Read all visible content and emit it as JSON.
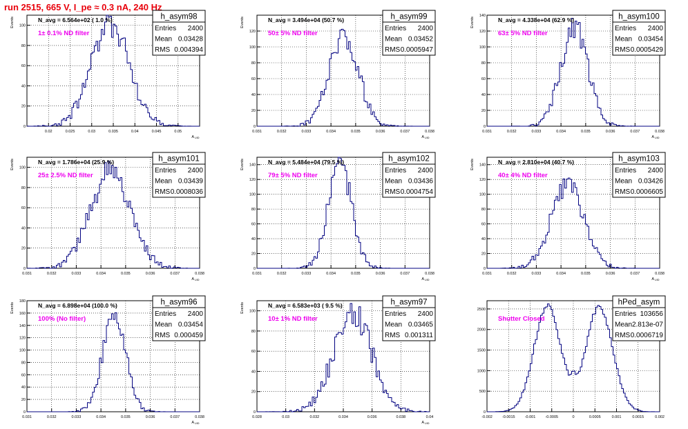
{
  "page_title": "run 2515,   665 V, I_pe ≈ 0.3 nA, 240 Hz",
  "chart_data": [
    {
      "type": "histogram",
      "name": "h_asym98",
      "ylabel": "Events",
      "xlabel": "A_{UID}",
      "xlim": [
        0.015,
        0.055
      ],
      "ylim": [
        0,
        110
      ],
      "xticks": [
        0.02,
        0.025,
        0.03,
        0.035,
        0.04,
        0.045,
        0.05
      ],
      "xtick_labels": [
        "0.02",
        "0.025",
        "0.03",
        "0.035",
        "0.04",
        "0.045",
        "0.05"
      ],
      "yticks": [
        0,
        20,
        40,
        60,
        80,
        100
      ],
      "navg_label": "N_avg = 6.564e+02 ( 1.0 %)",
      "filter_label": "1± 0.1% ND filter",
      "stats": [
        [
          "Entries",
          "2400"
        ],
        [
          "Mean",
          "0.03428"
        ],
        [
          "RMS",
          "0.004394"
        ]
      ],
      "shape": {
        "kind": "gaussian",
        "mu": 0.03428,
        "sigma": 0.004394,
        "peak": 102,
        "nbins": 100,
        "seed": 98
      }
    },
    {
      "type": "histogram",
      "name": "h_asym99",
      "ylabel": "Events",
      "xlabel": "A_{UID}",
      "xlim": [
        0.031,
        0.038
      ],
      "ylim": [
        0,
        140
      ],
      "xticks": [
        0.031,
        0.032,
        0.033,
        0.034,
        0.035,
        0.036,
        0.037,
        0.038
      ],
      "xtick_labels": [
        "0.031",
        "0.032",
        "0.033",
        "0.034",
        "0.035",
        "0.036",
        "0.037",
        "0.038"
      ],
      "yticks": [
        0,
        20,
        40,
        60,
        80,
        100,
        120
      ],
      "navg_label": "N_avg = 3.494e+04 (50.7 %)",
      "filter_label": "50± 5% ND filter",
      "stats": [
        [
          "Entries",
          "2400"
        ],
        [
          "Mean",
          "0.03452"
        ],
        [
          "RMS",
          "0.0005947"
        ]
      ],
      "shape": {
        "kind": "gaussian",
        "mu": 0.03452,
        "sigma": 0.0005947,
        "peak": 112,
        "nbins": 100,
        "seed": 99
      }
    },
    {
      "type": "histogram",
      "name": "h_asym100",
      "ylabel": "Events",
      "xlabel": "A_{UID}",
      "xlim": [
        0.031,
        0.038
      ],
      "ylim": [
        0,
        140
      ],
      "xticks": [
        0.031,
        0.032,
        0.033,
        0.034,
        0.035,
        0.036,
        0.037,
        0.038
      ],
      "xtick_labels": [
        "0.031",
        "0.032",
        "0.033",
        "0.034",
        "0.035",
        "0.036",
        "0.037",
        "0.038"
      ],
      "yticks": [
        0,
        20,
        40,
        60,
        80,
        100,
        120,
        140
      ],
      "navg_label": "N_avg = 4.338e+04 (62.9 %)",
      "filter_label": "63± 5% ND filter",
      "stats": [
        [
          "Entries",
          "2400"
        ],
        [
          "Mean",
          "0.03454"
        ],
        [
          "RMS",
          "0.0005429"
        ]
      ],
      "shape": {
        "kind": "gaussian",
        "mu": 0.03454,
        "sigma": 0.0005429,
        "peak": 126,
        "nbins": 100,
        "seed": 100
      }
    },
    {
      "type": "histogram",
      "name": "h_asym101",
      "ylabel": "Events",
      "xlabel": "A_{UID}",
      "xlim": [
        0.031,
        0.038
      ],
      "ylim": [
        0,
        110
      ],
      "xticks": [
        0.031,
        0.032,
        0.033,
        0.034,
        0.035,
        0.036,
        0.037,
        0.038
      ],
      "xtick_labels": [
        "0.031",
        "0.032",
        "0.033",
        "0.034",
        "0.035",
        "0.036",
        "0.037",
        "0.038"
      ],
      "yticks": [
        0,
        20,
        40,
        60,
        80,
        100
      ],
      "navg_label": "N_avg = 1.786e+04 (25.9 %)",
      "filter_label": "25± 2.5% ND filter",
      "stats": [
        [
          "Entries",
          "2400"
        ],
        [
          "Mean",
          "0.03439"
        ],
        [
          "RMS",
          "0.0008036"
        ]
      ],
      "shape": {
        "kind": "gaussian",
        "mu": 0.03439,
        "sigma": 0.0008036,
        "peak": 97,
        "nbins": 100,
        "seed": 101
      }
    },
    {
      "type": "histogram",
      "name": "h_asym102",
      "ylabel": "Events",
      "xlabel": "A_{UID}",
      "xlim": [
        0.031,
        0.038
      ],
      "ylim": [
        0,
        150
      ],
      "xticks": [
        0.031,
        0.032,
        0.033,
        0.034,
        0.035,
        0.036,
        0.037,
        0.038
      ],
      "xtick_labels": [
        "0.031",
        "0.032",
        "0.033",
        "0.034",
        "0.035",
        "0.036",
        "0.037",
        "0.038"
      ],
      "yticks": [
        0,
        20,
        40,
        60,
        80,
        100,
        120,
        140
      ],
      "navg_label": "N_avg = 5.484e+04 (79.5 %)",
      "filter_label": "79± 5% ND filter",
      "stats": [
        [
          "Entries",
          "2400"
        ],
        [
          "Mean",
          "0.03436"
        ],
        [
          "RMS",
          "0.0004754"
        ]
      ],
      "shape": {
        "kind": "gaussian",
        "mu": 0.03436,
        "sigma": 0.0004754,
        "peak": 142,
        "nbins": 100,
        "seed": 102
      }
    },
    {
      "type": "histogram",
      "name": "h_asym103",
      "ylabel": "Events",
      "xlabel": "A_{UID}",
      "xlim": [
        0.031,
        0.038
      ],
      "ylim": [
        0,
        150
      ],
      "xticks": [
        0.031,
        0.032,
        0.033,
        0.034,
        0.035,
        0.036,
        0.037,
        0.038
      ],
      "xtick_labels": [
        "0.031",
        "0.032",
        "0.033",
        "0.034",
        "0.035",
        "0.036",
        "0.037",
        "0.038"
      ],
      "yticks": [
        0,
        20,
        40,
        60,
        80,
        100,
        120,
        140
      ],
      "navg_label": "N_avg = 2.810e+04 (40.7 %)",
      "filter_label": "40± 4% ND filter",
      "stats": [
        [
          "Entries",
          "2400"
        ],
        [
          "Mean",
          "0.03426"
        ],
        [
          "RMS",
          "0.0006605"
        ]
      ],
      "shape": {
        "kind": "gaussian",
        "mu": 0.03426,
        "sigma": 0.0006605,
        "peak": 112,
        "nbins": 100,
        "seed": 103
      }
    },
    {
      "type": "histogram",
      "name": "h_asym96",
      "ylabel": "Events",
      "xlabel": "A_{UID}",
      "xlim": [
        0.031,
        0.038
      ],
      "ylim": [
        0,
        180
      ],
      "xticks": [
        0.031,
        0.032,
        0.033,
        0.034,
        0.035,
        0.036,
        0.037,
        0.038
      ],
      "xtick_labels": [
        "0.031",
        "0.032",
        "0.033",
        "0.034",
        "0.035",
        "0.036",
        "0.037",
        "0.038"
      ],
      "yticks": [
        0,
        20,
        40,
        60,
        80,
        100,
        120,
        140,
        160,
        180
      ],
      "navg_label": "N_avg = 6.898e+04 (100.0 %)",
      "filter_label": "100% (No filter)",
      "stats": [
        [
          "Entries",
          "2400"
        ],
        [
          "Mean",
          "0.03454"
        ],
        [
          "RMS",
          "0.000459"
        ]
      ],
      "shape": {
        "kind": "gaussian",
        "mu": 0.03454,
        "sigma": 0.000459,
        "peak": 166,
        "nbins": 100,
        "seed": 96
      }
    },
    {
      "type": "histogram",
      "name": "h_asym97",
      "ylabel": "Events",
      "xlabel": "A_{UID}",
      "xlim": [
        0.028,
        0.04
      ],
      "ylim": [
        0,
        110
      ],
      "xticks": [
        0.028,
        0.03,
        0.032,
        0.034,
        0.036,
        0.038,
        0.04
      ],
      "xtick_labels": [
        "0.028",
        "0.03",
        "0.032",
        "0.034",
        "0.036",
        "0.038",
        "0.04"
      ],
      "yticks": [
        0,
        20,
        40,
        60,
        80,
        100
      ],
      "navg_label": "N_avg = 6.583e+03 ( 9.5 %)",
      "filter_label": "10± 1% ND filter",
      "stats": [
        [
          "Entries",
          "2400"
        ],
        [
          "Mean",
          "0.03465"
        ],
        [
          "RMS",
          "0.001311"
        ]
      ],
      "shape": {
        "kind": "gaussian",
        "mu": 0.03465,
        "sigma": 0.001311,
        "peak": 98,
        "nbins": 100,
        "seed": 97
      }
    },
    {
      "type": "histogram",
      "name": "hPed_asym",
      "ylabel": "",
      "xlabel": "",
      "xlim": [
        -0.002,
        0.002
      ],
      "ylim": [
        0,
        2700
      ],
      "xticks": [
        -0.002,
        -0.0015,
        -0.001,
        -0.0005,
        0,
        0.0005,
        0.001,
        0.0015,
        0.002
      ],
      "xtick_labels": [
        "-0.002",
        "-0.0015",
        "-0.001",
        "-0.0005",
        "0",
        "0.0005",
        "0.001",
        "0.0015",
        "0.002"
      ],
      "yticks": [
        0,
        500,
        1000,
        1500,
        2000,
        2500
      ],
      "navg_label": "",
      "filter_label": "Shutter Closed",
      "stats": [
        [
          "Entries",
          "103656"
        ],
        [
          "Mean",
          "2.813e-07"
        ],
        [
          "RMS",
          "0.0006719"
        ]
      ],
      "shape": {
        "kind": "bimodal",
        "mu1": -0.0006,
        "mu2": 0.0006,
        "sigma": 0.00031,
        "peak": 2560,
        "floor": 1000,
        "nbins": 100,
        "seed": 7
      }
    }
  ]
}
